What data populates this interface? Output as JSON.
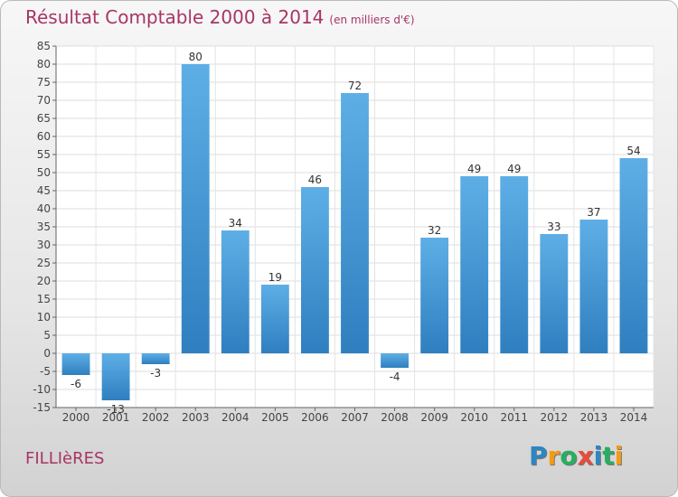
{
  "title": "Résultat Comptable 2000 à 2014",
  "subtitle": "(en milliers d'€)",
  "commune": "FILLIèRES",
  "logo": {
    "letters": [
      {
        "ch": "P",
        "color": "#2e86c1"
      },
      {
        "ch": "r",
        "color": "#f39c12"
      },
      {
        "ch": "o",
        "color": "#27ae60"
      },
      {
        "ch": "x",
        "color": "#e74c3c"
      },
      {
        "ch": "i",
        "color": "#2e86c1"
      },
      {
        "ch": "t",
        "color": "#27ae60"
      },
      {
        "ch": "i",
        "color": "#f39c12"
      }
    ]
  },
  "chart_data": {
    "type": "bar",
    "title": "Résultat Comptable 2000 à 2014",
    "xlabel": "",
    "ylabel": "",
    "categories": [
      "2000",
      "2001",
      "2002",
      "2003",
      "2004",
      "2005",
      "2006",
      "2007",
      "2008",
      "2009",
      "2010",
      "2011",
      "2012",
      "2013",
      "2014"
    ],
    "values": [
      -6,
      -13,
      -3,
      80,
      34,
      19,
      46,
      72,
      -4,
      32,
      49,
      49,
      33,
      37,
      54
    ],
    "ylim": [
      -15,
      85
    ],
    "ytick_step": 5,
    "bar_color": "#3d93d6",
    "grid": true
  }
}
